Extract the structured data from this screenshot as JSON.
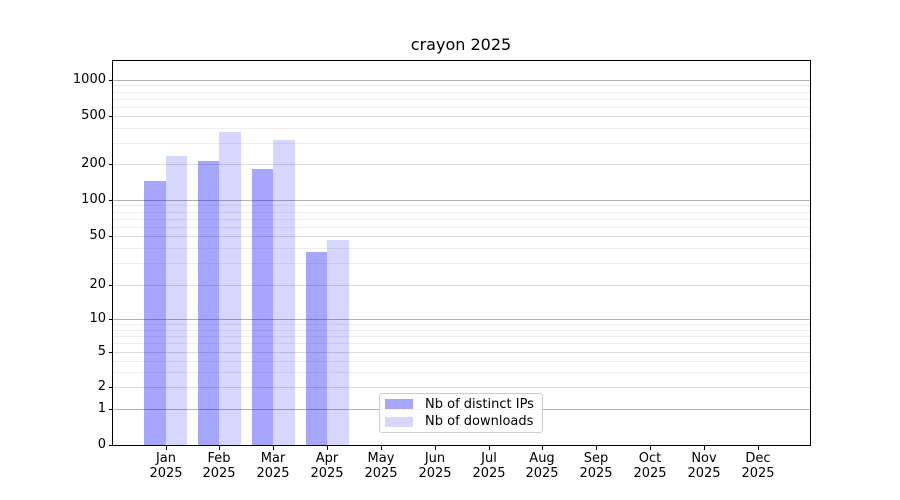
{
  "title": "crayon 2025",
  "y_axis": {
    "tick_labels": [
      "1000",
      "500",
      "200",
      "100",
      "50",
      "20",
      "10",
      "5",
      "2",
      "1",
      "0"
    ]
  },
  "x_axis": {
    "year": "2025",
    "months": [
      "Jan",
      "Feb",
      "Mar",
      "Apr",
      "May",
      "Jun",
      "Jul",
      "Aug",
      "Sep",
      "Oct",
      "Nov",
      "Dec"
    ]
  },
  "legend": {
    "items": [
      {
        "label": "Nb of distinct IPs",
        "color": "rgba(0,0,255,0.35)"
      },
      {
        "label": "Nb of downloads",
        "color": "rgba(0,0,255,0.16)"
      }
    ]
  },
  "chart_data": {
    "type": "bar",
    "title": "crayon 2025",
    "categories": [
      "Jan 2025",
      "Feb 2025",
      "Mar 2025",
      "Apr 2025",
      "May 2025",
      "Jun 2025",
      "Jul 2025",
      "Aug 2025",
      "Sep 2025",
      "Oct 2025",
      "Nov 2025",
      "Dec 2025"
    ],
    "series": [
      {
        "name": "Nb of distinct IPs",
        "color": "rgba(0,0,255,0.35)",
        "values": [
          144,
          210,
          183,
          37,
          null,
          null,
          null,
          null,
          null,
          null,
          null,
          null
        ]
      },
      {
        "name": "Nb of downloads",
        "color": "rgba(0,0,255,0.16)",
        "values": [
          235,
          368,
          315,
          46,
          null,
          null,
          null,
          null,
          null,
          null,
          null,
          null
        ]
      }
    ],
    "yaxis": {
      "scale": "symlog",
      "ticks": [
        0,
        1,
        2,
        5,
        10,
        20,
        50,
        100,
        200,
        500,
        1000
      ],
      "range": [
        0,
        1000
      ],
      "sub_gridlines": [
        2,
        5,
        20,
        50,
        200,
        500
      ],
      "major_gridlines": [
        1,
        10,
        100,
        1000
      ],
      "minor_gridlines": [
        3,
        4,
        6,
        7,
        8,
        9,
        30,
        40,
        60,
        70,
        80,
        90,
        300,
        400,
        600,
        700,
        800,
        900
      ]
    },
    "grid": true,
    "legend_position": "lower center"
  }
}
